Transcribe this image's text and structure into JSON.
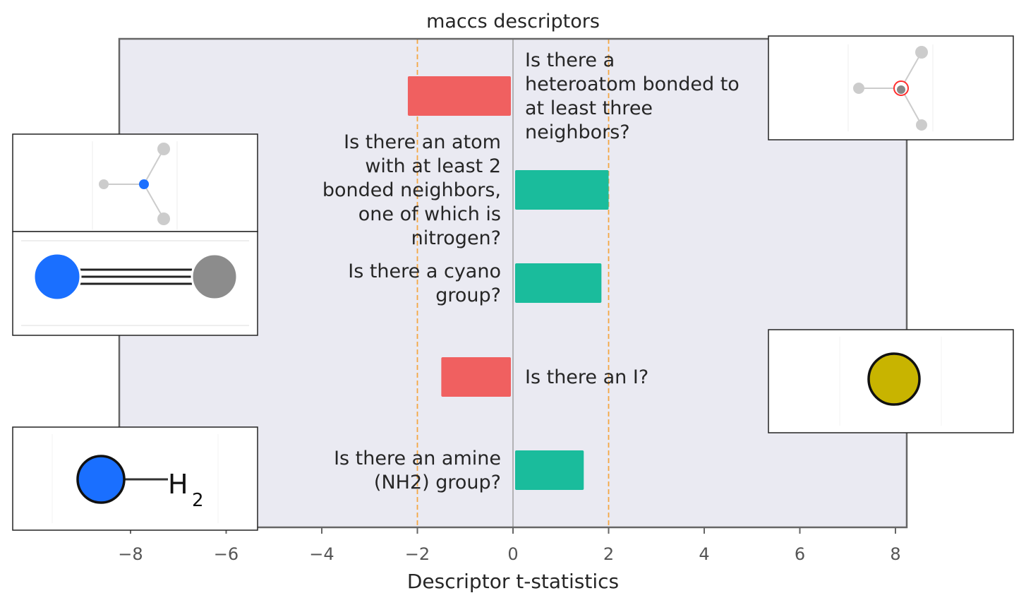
{
  "chart_data": {
    "type": "bar",
    "orientation": "horizontal",
    "title": "maccs descriptors",
    "xlabel": "Descriptor t-statistics",
    "ylabel": "",
    "xlim": [
      -8.6,
      8.2
    ],
    "xticks": [
      -8,
      -6,
      -4,
      -2,
      0,
      2,
      4,
      6,
      8
    ],
    "xtick_labels": [
      "−8",
      "−6",
      "−4",
      "−2",
      "0",
      "2",
      "4",
      "6",
      "8"
    ],
    "threshold_lines": [
      -2,
      2
    ],
    "grid": false,
    "colors": {
      "positive": "#1abc9c",
      "negative": "#f06060",
      "threshold": "#f5a742",
      "background": "#eaeaf2"
    },
    "categories": [
      "Is there a heteroatom bonded to at least three neighbors?",
      "Is there an atom with at least 2 bonded neighbors, one of which is nitrogen?",
      "Is there a cyano group?",
      "Is there an I?",
      "Is there an amine (NH2) group?"
    ],
    "values": [
      -2.2,
      2.0,
      1.85,
      -1.5,
      1.48
    ],
    "label_lines": [
      [
        "Is there a",
        "heteroatom bonded to",
        "at least three",
        "neighbors?"
      ],
      [
        "Is there an atom",
        "with at least 2",
        "bonded neighbors,",
        "one of which is",
        "nitrogen?"
      ],
      [
        "Is there a cyano",
        "group?"
      ],
      [
        "Is there an I?"
      ],
      [
        "Is there an amine",
        "(NH2) group?"
      ]
    ]
  },
  "insets": {
    "inset_0": {
      "icon": "heteroatom-structure-icon",
      "atom_color": "#ff3030"
    },
    "inset_1": {
      "icon": "nitrogen-neighbor-structure-icon",
      "atom_color": "#1a6fff"
    },
    "inset_2": {
      "icon": "cyano-structure-icon",
      "atom_color": "#1a6fff",
      "partner_color": "#8c8c8c"
    },
    "inset_3": {
      "icon": "iodine-atom-icon",
      "atom_color": "#c8b400",
      "h_label": ""
    },
    "inset_4": {
      "icon": "amine-structure-icon",
      "atom_color": "#1a6fff",
      "h_label": "H",
      "h_sub": "2"
    }
  }
}
